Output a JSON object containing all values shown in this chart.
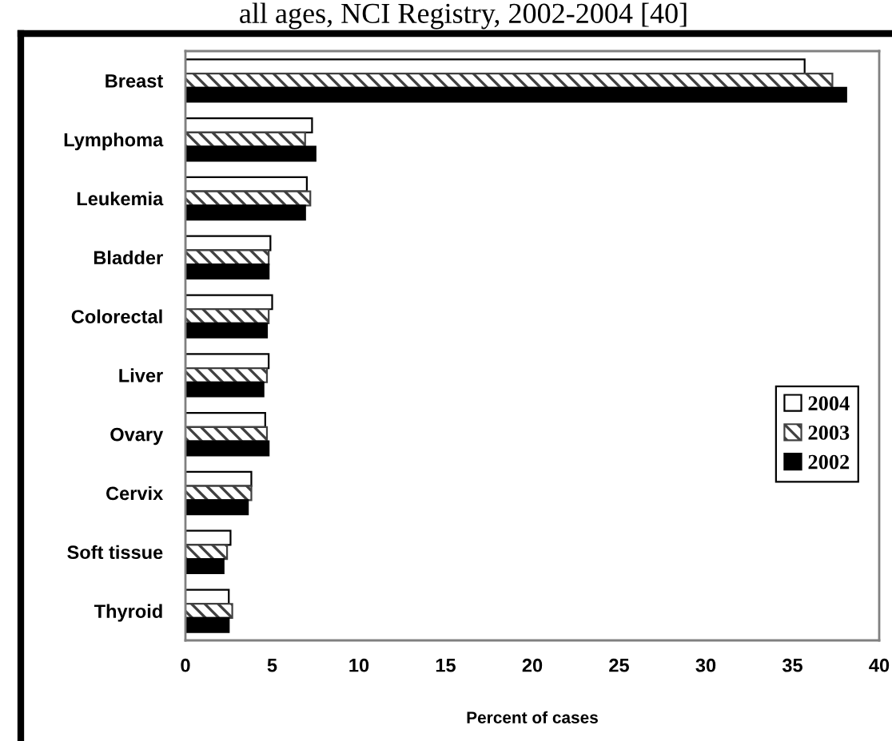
{
  "chart_data": {
    "type": "bar",
    "orientation": "horizontal",
    "title": "all ages, NCI Registry, 2002-2004 [40]",
    "xlabel": "Percent of cases",
    "categories": [
      "Breast",
      "Lymphoma",
      "Leukemia",
      "Bladder",
      "Colorectal",
      "Liver",
      "Ovary",
      "Cervix",
      "Soft tissue",
      "Thyroid"
    ],
    "series": [
      {
        "name": "2004",
        "color": "#ffffff",
        "values": [
          35.7,
          7.3,
          7.0,
          4.9,
          5.0,
          4.8,
          4.6,
          3.8,
          2.6,
          2.5
        ]
      },
      {
        "name": "2003",
        "color": "#404040",
        "values": [
          37.3,
          6.9,
          7.2,
          4.8,
          4.8,
          4.7,
          4.7,
          3.8,
          2.4,
          2.7
        ]
      },
      {
        "name": "2002",
        "color": "#000000",
        "values": [
          38.1,
          7.5,
          6.9,
          4.8,
          4.7,
          4.5,
          4.8,
          3.6,
          2.2,
          2.5
        ]
      }
    ],
    "xlim": [
      0,
      40
    ],
    "xticks": [
      0,
      5,
      10,
      15,
      20,
      25,
      30,
      35,
      40
    ],
    "legend": "right",
    "grid": false
  }
}
